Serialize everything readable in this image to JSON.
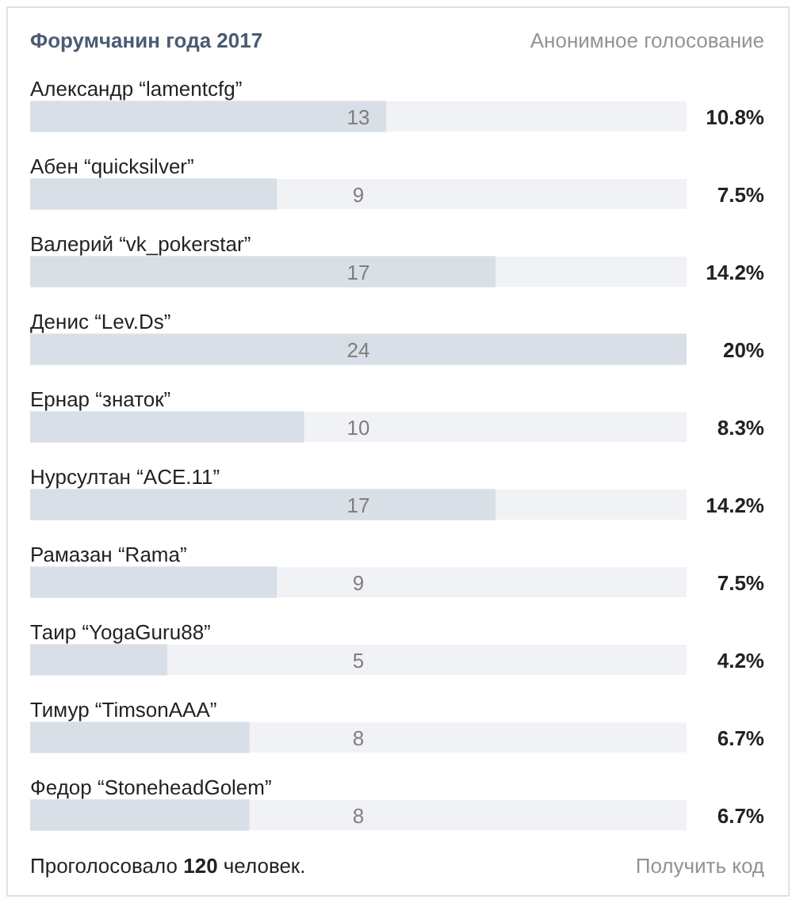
{
  "chart_data": {
    "type": "bar",
    "orientation": "horizontal",
    "title": "Форумчанин года 2017",
    "subtitle": "Анонимное голосование",
    "categories": [
      "Александр “lamentcfg”",
      "Абен “quicksilver”",
      "Валерий “vk_pokerstar”",
      "Денис “Lev.Ds”",
      "Ернар “знаток”",
      "Нурсултан “ACE.11”",
      "Рамазан “Rama”",
      "Таир “YogaGuru88”",
      "Тимур “TimsonAAA”",
      "Федор “StoneheadGolem”"
    ],
    "values": [
      13,
      9,
      17,
      24,
      10,
      17,
      9,
      5,
      8,
      8
    ],
    "color": "#d9dfe6",
    "data_labels": true,
    "tick_labels": "y",
    "legend": false,
    "annotations": [
      "10.8%",
      "7.5%",
      "14.2%",
      "20%",
      "8.3%",
      "14.2%",
      "7.5%",
      "4.2%",
      "6.7%",
      "6.7%",
      "Проголосовало 120 человек.",
      "Получить код"
    ]
  }
}
